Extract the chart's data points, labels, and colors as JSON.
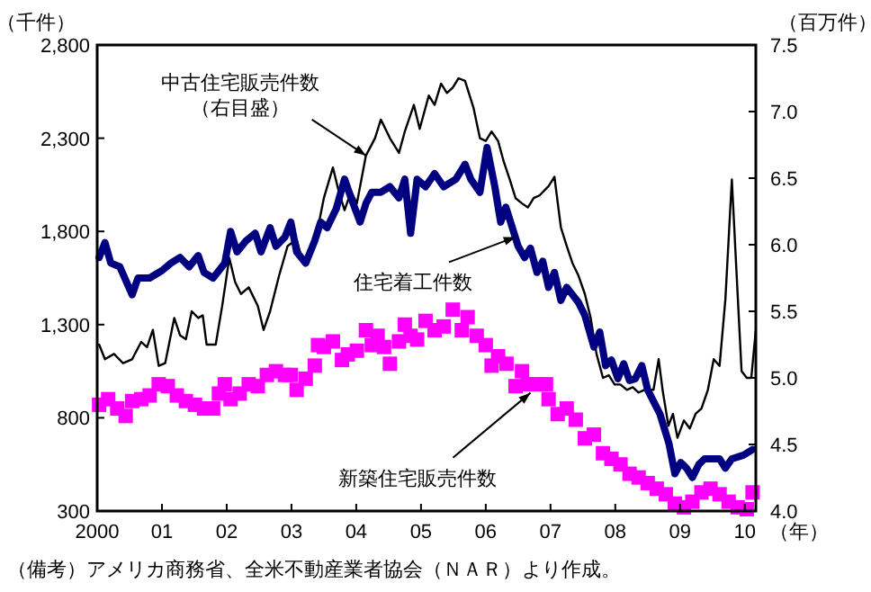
{
  "chart_data": {
    "type": "line",
    "ylabel": "（千件）",
    "y2label": "（百万件）",
    "xlabel": "（年）",
    "xlim": [
      2000,
      2010.17
    ],
    "ylim": [
      300,
      2800
    ],
    "y2lim": [
      4,
      7.5
    ],
    "xticks": [
      2000,
      {
        "value": 2001,
        "label": "01"
      },
      {
        "value": 2002,
        "label": "02"
      },
      {
        "value": 2003,
        "label": "03"
      },
      {
        "value": 2004,
        "label": "04"
      },
      {
        "value": 2005,
        "label": "05"
      },
      {
        "value": 2006,
        "label": "06"
      },
      {
        "value": 2007,
        "label": "07"
      },
      {
        "value": 2008,
        "label": "08"
      },
      {
        "value": 2009,
        "label": "09"
      },
      {
        "value": 2010,
        "label": "10"
      }
    ],
    "yticks": [
      300,
      800,
      {
        "value": 1300,
        "label": "1,300"
      },
      {
        "value": 1800,
        "label": "1,800"
      },
      {
        "value": 2300,
        "label": "2,300"
      },
      {
        "value": 2800,
        "label": "2,800"
      }
    ],
    "y2ticks": [
      {
        "value": 4,
        "label": "4.0"
      },
      {
        "value": 4.5,
        "label": "4.5"
      },
      {
        "value": 5,
        "label": "5.0"
      },
      {
        "value": 5.5,
        "label": "5.5"
      },
      {
        "value": 6,
        "label": "6.0"
      },
      {
        "value": 6.5,
        "label": "6.5"
      },
      {
        "value": 7,
        "label": "7.0"
      },
      {
        "value": 7.5,
        "label": "7.5"
      }
    ],
    "grid": false,
    "legend": false,
    "series": [
      {
        "type": "line",
        "axis": "y2",
        "color": "#000000",
        "marker": "none",
        "x": [
          2000.03,
          2000.12,
          2000.26,
          2000.4,
          2000.54,
          2000.68,
          2000.77,
          2000.86,
          2000.95,
          2001.05,
          2001.19,
          2001.28,
          2001.37,
          2001.46,
          2001.56,
          2001.63,
          2001.69,
          2001.83,
          2001.93,
          2002.04,
          2002.13,
          2002.22,
          2002.34,
          2002.48,
          2002.57,
          2002.67,
          2002.81,
          2002.94,
          2003.08,
          2003.18,
          2003.27,
          2003.41,
          2003.5,
          2003.64,
          2003.73,
          2003.82,
          2003.92,
          2004.01,
          2004.15,
          2004.29,
          2004.38,
          2004.52,
          2004.66,
          2004.75,
          2004.89,
          2004.98,
          2005.12,
          2005.21,
          2005.31,
          2005.4,
          2005.49,
          2005.58,
          2005.68,
          2005.81,
          2005.91,
          2006.0,
          2006.09,
          2006.19,
          2006.28,
          2006.37,
          2006.46,
          2006.56,
          2006.65,
          2006.74,
          2006.83,
          2006.97,
          2007.06,
          2007.16,
          2007.25,
          2007.34,
          2007.43,
          2007.53,
          2007.62,
          2007.71,
          2007.81,
          2007.9,
          2007.99,
          2008.08,
          2008.18,
          2008.27,
          2008.36,
          2008.45,
          2008.59,
          2008.67,
          2008.73,
          2008.82,
          2008.89,
          2008.96,
          2009.06,
          2009.15,
          2009.24,
          2009.33,
          2009.43,
          2009.52,
          2009.61,
          2009.7,
          2009.8,
          2009.87,
          2009.95,
          2010.03,
          2010.1,
          2010.17
        ],
        "values": [
          5.25,
          5.14,
          5.18,
          5.11,
          5.14,
          5.27,
          5.23,
          5.36,
          5.09,
          5.11,
          5.45,
          5.32,
          5.29,
          5.5,
          5.45,
          5.47,
          5.25,
          5.25,
          5.54,
          5.9,
          5.72,
          5.63,
          5.68,
          5.54,
          5.36,
          5.5,
          5.77,
          5.99,
          6.04,
          5.86,
          5.9,
          6.13,
          6.35,
          6.58,
          6.4,
          6.26,
          6.4,
          6.31,
          6.67,
          6.8,
          6.94,
          6.8,
          6.69,
          6.85,
          7.05,
          6.87,
          7.12,
          7.05,
          7.21,
          7.14,
          7.18,
          7.25,
          7.23,
          7.03,
          6.8,
          6.78,
          6.85,
          6.78,
          6.62,
          6.49,
          6.35,
          6.31,
          6.28,
          6.35,
          6.37,
          6.44,
          6.51,
          6.13,
          5.99,
          5.86,
          5.77,
          5.63,
          5.45,
          5.18,
          5.0,
          5.02,
          4.95,
          4.95,
          4.91,
          4.93,
          4.89,
          4.91,
          4.91,
          5.14,
          4.91,
          4.64,
          4.73,
          4.55,
          4.68,
          4.62,
          4.73,
          4.77,
          4.91,
          5.14,
          5.09,
          5.59,
          6.49,
          5.81,
          5.05,
          5.0,
          5.0,
          5.36
        ]
      },
      {
        "type": "line",
        "color": "#000080",
        "marker": "none",
        "x": [
          2000.03,
          2000.12,
          2000.21,
          2000.35,
          2000.54,
          2000.63,
          2000.81,
          2001.0,
          2001.14,
          2001.28,
          2001.42,
          2001.56,
          2001.65,
          2001.79,
          2001.97,
          2002.06,
          2002.16,
          2002.3,
          2002.44,
          2002.53,
          2002.67,
          2002.76,
          2002.9,
          2002.99,
          2003.08,
          2003.22,
          2003.36,
          2003.45,
          2003.55,
          2003.69,
          2003.82,
          2003.92,
          2004.06,
          2004.15,
          2004.24,
          2004.38,
          2004.52,
          2004.66,
          2004.75,
          2004.84,
          2004.94,
          2005.07,
          2005.21,
          2005.35,
          2005.54,
          2005.68,
          2005.77,
          2005.91,
          2006.02,
          2006.14,
          2006.23,
          2006.31,
          2006.41,
          2006.5,
          2006.6,
          2006.69,
          2006.79,
          2006.88,
          2006.97,
          2007.06,
          2007.16,
          2007.25,
          2007.34,
          2007.43,
          2007.53,
          2007.67,
          2007.76,
          2007.85,
          2007.94,
          2008.04,
          2008.13,
          2008.22,
          2008.31,
          2008.41,
          2008.5,
          2008.69,
          2008.83,
          2008.92,
          2009.01,
          2009.1,
          2009.19,
          2009.29,
          2009.38,
          2009.47,
          2009.61,
          2009.7,
          2009.8,
          2009.98,
          2010.12
        ],
        "values": [
          1660,
          1740,
          1630,
          1610,
          1460,
          1550,
          1550,
          1590,
          1630,
          1660,
          1610,
          1670,
          1580,
          1550,
          1630,
          1800,
          1690,
          1750,
          1790,
          1690,
          1820,
          1720,
          1770,
          1850,
          1690,
          1630,
          1750,
          1850,
          1820,
          1920,
          2080,
          1980,
          1850,
          1950,
          2010,
          2010,
          2040,
          1980,
          2080,
          1790,
          2080,
          2040,
          2110,
          2040,
          2080,
          2160,
          2080,
          2010,
          2250,
          2040,
          1850,
          1930,
          1820,
          1720,
          1660,
          1710,
          1580,
          1640,
          1500,
          1580,
          1430,
          1500,
          1460,
          1420,
          1350,
          1180,
          1260,
          1080,
          1110,
          1010,
          1090,
          1000,
          1010,
          1080,
          950,
          820,
          660,
          500,
          560,
          530,
          480,
          550,
          580,
          580,
          580,
          530,
          580,
          600,
          630
        ]
      },
      {
        "type": "scatter",
        "color": "#ff00ff",
        "marker": "square",
        "x": [
          2000.03,
          2000.17,
          2000.31,
          2000.44,
          2000.54,
          2000.68,
          2000.81,
          2000.95,
          2001.09,
          2001.23,
          2001.37,
          2001.51,
          2001.65,
          2001.79,
          2001.88,
          2001.97,
          2002.06,
          2002.2,
          2002.34,
          2002.48,
          2002.62,
          2002.76,
          2002.9,
          2002.99,
          2003.08,
          2003.22,
          2003.36,
          2003.41,
          2003.5,
          2003.64,
          2003.78,
          2003.87,
          2004.01,
          2004.15,
          2004.24,
          2004.33,
          2004.43,
          2004.52,
          2004.66,
          2004.75,
          2004.84,
          2004.94,
          2005.07,
          2005.21,
          2005.35,
          2005.49,
          2005.63,
          2005.72,
          2005.86,
          2006.0,
          2006.09,
          2006.19,
          2006.32,
          2006.46,
          2006.56,
          2006.65,
          2006.79,
          2006.93,
          2006.97,
          2007.11,
          2007.25,
          2007.39,
          2007.53,
          2007.67,
          2007.81,
          2007.94,
          2008.08,
          2008.22,
          2008.36,
          2008.5,
          2008.64,
          2008.78,
          2008.92,
          2009.06,
          2009.19,
          2009.33,
          2009.47,
          2009.61,
          2009.75,
          2009.89,
          2010.03,
          2010.12
        ],
        "values": [
          870,
          900,
          850,
          810,
          890,
          900,
          920,
          980,
          970,
          920,
          890,
          870,
          850,
          850,
          930,
          980,
          900,
          930,
          980,
          970,
          1030,
          1050,
          1030,
          1030,
          950,
          1010,
          1080,
          1190,
          1180,
          1210,
          1110,
          1140,
          1160,
          1270,
          1190,
          1240,
          1180,
          1090,
          1210,
          1300,
          1240,
          1220,
          1320,
          1270,
          1290,
          1380,
          1270,
          1340,
          1240,
          1190,
          1080,
          1130,
          1090,
          970,
          1050,
          980,
          980,
          980,
          900,
          820,
          850,
          790,
          690,
          710,
          610,
          580,
          550,
          500,
          480,
          450,
          420,
          390,
          340,
          320,
          350,
          400,
          420,
          390,
          350,
          320,
          310,
          400
        ]
      }
    ],
    "annotations": [
      {
        "text": "中古住宅販売件数（右目盛）",
        "x": 2004.15,
        "y": 2207
      },
      {
        "text": "住宅着工件数",
        "x": 2006.46,
        "y": 1770
      },
      {
        "text": "新築住宅販売件数",
        "x": 2006.69,
        "y": 934
      },
      "（備考）アメリカ商務省、全米不動産業者協会（ＮＡＲ）より作成。"
    ]
  }
}
